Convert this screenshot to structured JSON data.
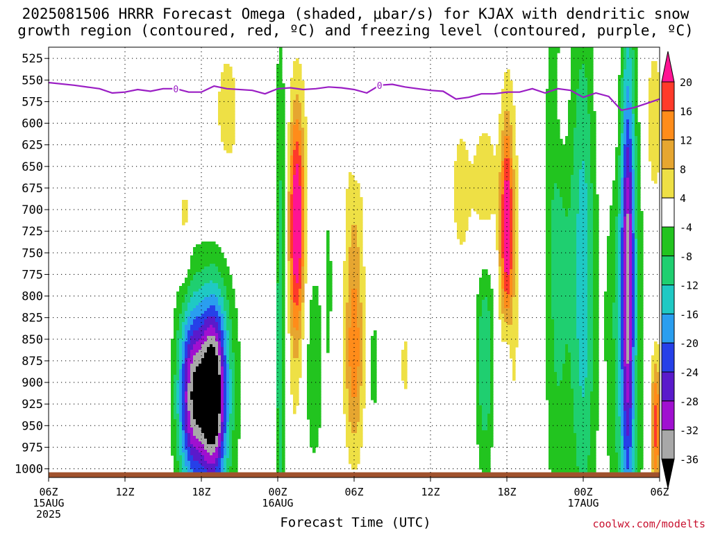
{
  "title": "2025081506 HRRR Forecast Omega (shaded, μbar/s) for KJAX with dendritic snow growth region (contoured, red, ºC) and freezing level (contoured, purple, ºC)",
  "xlabel": "Forecast Time (UTC)",
  "credit": "coolwx.com/modelts",
  "chart_data": {
    "type": "heatmap",
    "title": "2025081506 HRRR Forecast Omega (shaded, μbar/s) for KJAX with dendritic snow growth region (contoured, red, ºC) and freezing level (contoured, purple, ºC)",
    "xlabel": "Forecast Time (UTC)",
    "ylabel": "",
    "x_range_hours": [
      0,
      48
    ],
    "y_range_hpa": [
      1010,
      512
    ],
    "y_ticks": [
      525,
      550,
      575,
      600,
      625,
      650,
      675,
      700,
      725,
      750,
      775,
      800,
      825,
      850,
      875,
      900,
      925,
      950,
      975,
      1000
    ],
    "x_ticks": [
      {
        "hour": 0,
        "lines": [
          "06Z",
          "15AUG",
          "2025"
        ]
      },
      {
        "hour": 6,
        "lines": [
          "12Z"
        ]
      },
      {
        "hour": 12,
        "lines": [
          "18Z"
        ]
      },
      {
        "hour": 18,
        "lines": [
          "00Z",
          "16AUG"
        ]
      },
      {
        "hour": 24,
        "lines": [
          "06Z"
        ]
      },
      {
        "hour": 30,
        "lines": [
          "12Z"
        ]
      },
      {
        "hour": 36,
        "lines": [
          "18Z"
        ]
      },
      {
        "hour": 42,
        "lines": [
          "00Z",
          "17AUG"
        ]
      },
      {
        "hour": 48,
        "lines": [
          "06Z"
        ]
      }
    ],
    "grid": true,
    "colorbar": {
      "labels": [
        "20",
        "16",
        "12",
        "8",
        "4",
        "-4",
        "-8",
        "-12",
        "-16",
        "-20",
        "-24",
        "-28",
        "-32",
        "-36"
      ],
      "bins": [
        {
          "min": 20,
          "color": "#ff1493"
        },
        {
          "min": 16,
          "max": 20,
          "color": "#ff3a2a"
        },
        {
          "min": 12,
          "max": 16,
          "color": "#ff8c1a"
        },
        {
          "min": 8,
          "max": 12,
          "color": "#e6a630"
        },
        {
          "min": 4,
          "max": 8,
          "color": "#eee045"
        },
        {
          "min": -4,
          "max": 4,
          "color": "#ffffff"
        },
        {
          "min": -8,
          "max": -4,
          "color": "#22c41f"
        },
        {
          "min": -12,
          "max": -8,
          "color": "#1fcf70"
        },
        {
          "min": -16,
          "max": -12,
          "color": "#1fc9c4"
        },
        {
          "min": -20,
          "max": -16,
          "color": "#2a9eef"
        },
        {
          "min": -24,
          "max": -20,
          "color": "#2640e8"
        },
        {
          "min": -28,
          "max": -24,
          "color": "#5a1acb"
        },
        {
          "min": -32,
          "max": -28,
          "color": "#a010d0"
        },
        {
          "min": -36,
          "max": -32,
          "color": "#a8a8a8"
        },
        {
          "max": -36,
          "color": "#000000"
        }
      ]
    },
    "freezing_level": {
      "label": "0",
      "color": "#9a1dc4",
      "points": [
        [
          0,
          553
        ],
        [
          2,
          556
        ],
        [
          4,
          560
        ],
        [
          5,
          565
        ],
        [
          6,
          564
        ],
        [
          7,
          561
        ],
        [
          8,
          563
        ],
        [
          9,
          560
        ],
        [
          10,
          560
        ],
        [
          11,
          564
        ],
        [
          12,
          564
        ],
        [
          13,
          557
        ],
        [
          14,
          560
        ],
        [
          16,
          562
        ],
        [
          17,
          566
        ],
        [
          18,
          560
        ],
        [
          19,
          559
        ],
        [
          20,
          561
        ],
        [
          21,
          560
        ],
        [
          22,
          558
        ],
        [
          23,
          559
        ],
        [
          24,
          561
        ],
        [
          25,
          565
        ],
        [
          26,
          556
        ],
        [
          27,
          555
        ],
        [
          28,
          558
        ],
        [
          29,
          560
        ],
        [
          30,
          562
        ],
        [
          31,
          563
        ],
        [
          32,
          572
        ],
        [
          33,
          570
        ],
        [
          34,
          566
        ],
        [
          35,
          566
        ],
        [
          36,
          564
        ],
        [
          37,
          564
        ],
        [
          38,
          560
        ],
        [
          39,
          565
        ],
        [
          40,
          560
        ],
        [
          41,
          562
        ],
        [
          42,
          570
        ],
        [
          43,
          565
        ],
        [
          44,
          569
        ],
        [
          45,
          585
        ],
        [
          46,
          582
        ],
        [
          47,
          577
        ],
        [
          48,
          572
        ]
      ],
      "label_points": [
        [
          10,
          560
        ],
        [
          26,
          556
        ]
      ]
    },
    "features": [
      {
        "t": 19.5,
        "p": 800,
        "sig_t": 0.75,
        "sig_p": 190,
        "value": 5
      },
      {
        "t": 19.5,
        "p": 715,
        "sig_t": 0.42,
        "sig_p": 90,
        "value": 22
      },
      {
        "t": 12.9,
        "p": 915,
        "sig_t": 0.7,
        "sig_p": 70,
        "value": -34
      },
      {
        "t": 13.5,
        "p": 900,
        "sig_t": 1.1,
        "sig_p": 120,
        "value": -10
      },
      {
        "t": 11.3,
        "p": 915,
        "sig_t": 0.75,
        "sig_p": 70,
        "value": -25
      },
      {
        "t": 11.3,
        "p": 920,
        "sig_t": 1.1,
        "sig_p": 110,
        "value": -8
      },
      {
        "t": 14.0,
        "p": 600,
        "sig_t": 1.2,
        "sig_p": 110,
        "value": 5
      },
      {
        "t": 10.7,
        "p": 715,
        "sig_t": 0.3,
        "sig_p": 50,
        "value": 6
      },
      {
        "t": 18.2,
        "p": 850,
        "sig_t": 0.35,
        "sig_p": 260,
        "value": -12
      },
      {
        "t": 17.5,
        "p": 850,
        "sig_t": 0.3,
        "sig_p": 250,
        "value": 5
      },
      {
        "t": 24.0,
        "p": 880,
        "sig_t": 0.55,
        "sig_p": 80,
        "value": 12
      },
      {
        "t": 24.0,
        "p": 720,
        "sig_t": 0.55,
        "sig_p": 110,
        "value": 7
      },
      {
        "t": 24.1,
        "p": 600,
        "sig_t": 0.3,
        "sig_p": 50,
        "value": -6
      },
      {
        "t": 20.7,
        "p": 880,
        "sig_t": 0.65,
        "sig_p": 100,
        "value": -8
      },
      {
        "t": 34.3,
        "p": 870,
        "sig_t": 0.55,
        "sig_p": 100,
        "value": -12
      },
      {
        "t": 36.0,
        "p": 720,
        "sig_t": 0.35,
        "sig_p": 80,
        "value": 21
      },
      {
        "t": 36.2,
        "p": 800,
        "sig_t": 0.75,
        "sig_p": 220,
        "value": 5
      },
      {
        "t": 34.3,
        "p": 680,
        "sig_t": 0.6,
        "sig_p": 60,
        "value": 8
      },
      {
        "t": 36.0,
        "p": 880,
        "sig_t": 0.25,
        "sig_p": 50,
        "value": -7
      },
      {
        "t": 40.0,
        "p": 720,
        "sig_t": 0.75,
        "sig_p": 260,
        "value": -10
      },
      {
        "t": 42.0,
        "p": 780,
        "sig_t": 0.7,
        "sig_p": 230,
        "value": -14
      },
      {
        "t": 45.5,
        "p": 780,
        "sig_t": 0.35,
        "sig_p": 180,
        "value": -24
      },
      {
        "t": 45.3,
        "p": 800,
        "sig_t": 1.0,
        "sig_p": 260,
        "value": -12
      },
      {
        "t": 47.7,
        "p": 950,
        "sig_t": 0.3,
        "sig_p": 60,
        "value": 18
      },
      {
        "t": 47.5,
        "p": 600,
        "sig_t": 0.6,
        "sig_p": 80,
        "value": 7
      },
      {
        "t": 25.5,
        "p": 880,
        "sig_t": 0.3,
        "sig_p": 100,
        "value": -5
      },
      {
        "t": 28.0,
        "p": 880,
        "sig_t": 0.35,
        "sig_p": 40,
        "value": 5
      },
      {
        "t": 22.0,
        "p": 780,
        "sig_t": 0.2,
        "sig_p": 80,
        "value": -5
      },
      {
        "t": 40.3,
        "p": 580,
        "sig_t": 0.5,
        "sig_p": 70,
        "value": 6
      },
      {
        "t": 44.5,
        "p": 580,
        "sig_t": 0.9,
        "sig_p": 90,
        "value": 5
      },
      {
        "t": 32.4,
        "p": 680,
        "sig_t": 0.8,
        "sig_p": 90,
        "value": 5
      }
    ]
  }
}
